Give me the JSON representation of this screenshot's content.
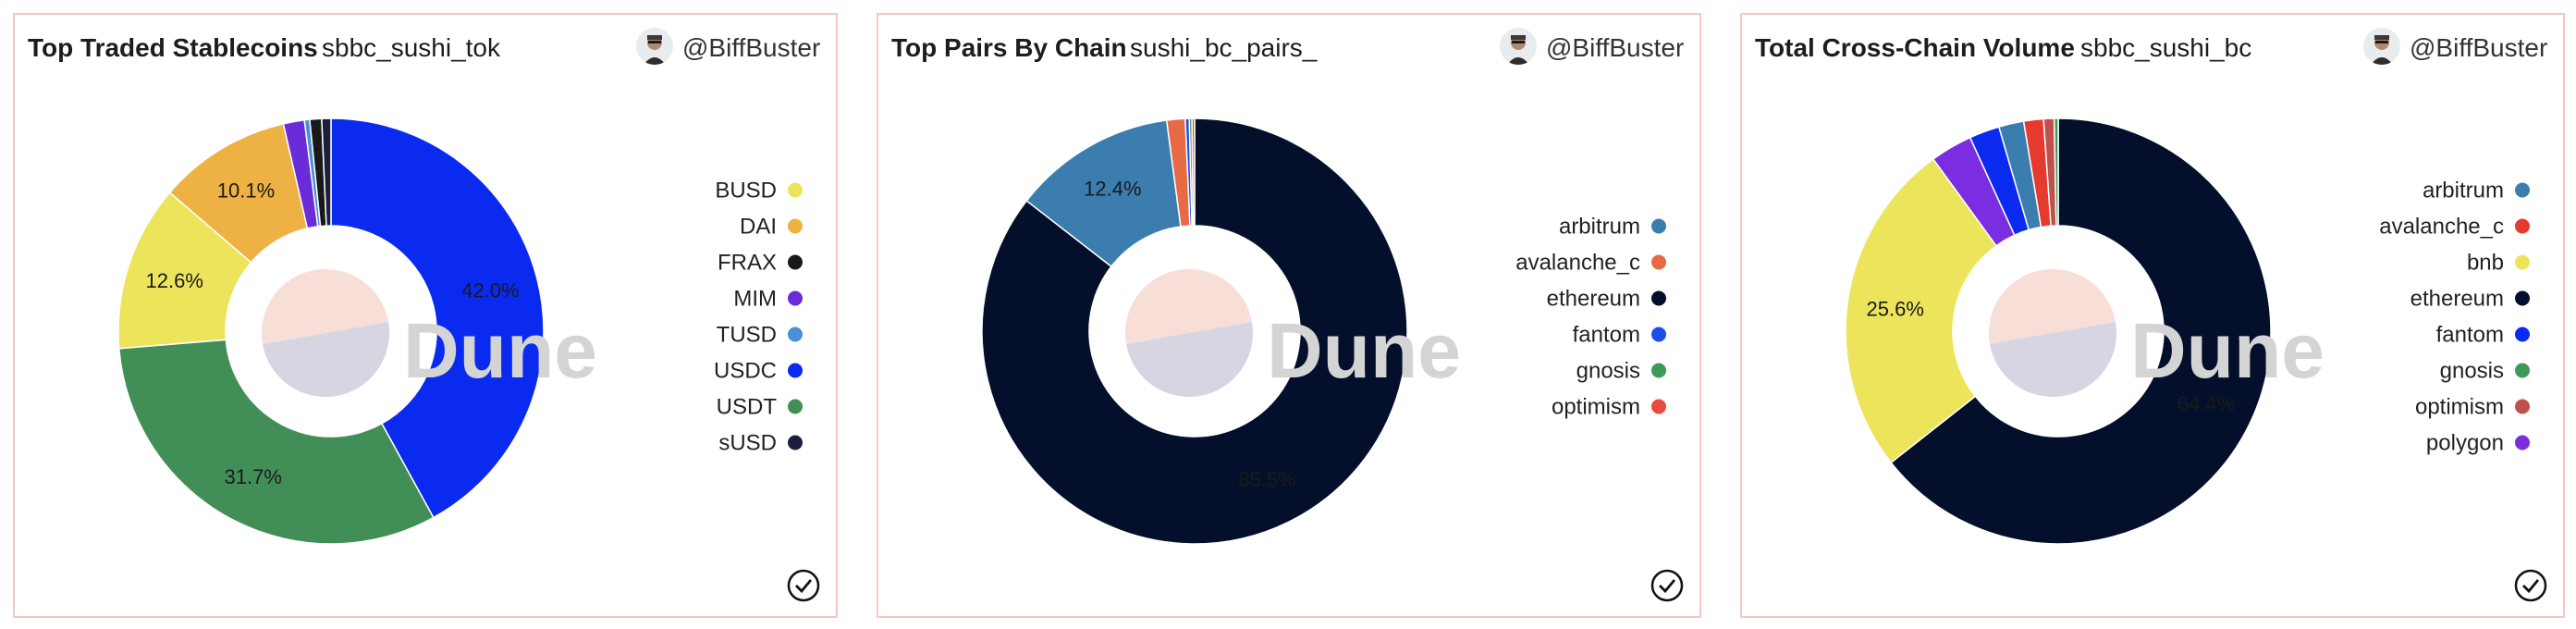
{
  "panels": [
    {
      "title": "Top Traded Stablecoins",
      "query": "sbbc_sushi_tok",
      "author": "@BiffBuster"
    },
    {
      "title": "Top Pairs By Chain",
      "query": "sushi_bc_pairs_",
      "author": "@BiffBuster"
    },
    {
      "title": "Total Cross-Chain Volume",
      "query": "sbbc_sushi_bc",
      "author": "@BiffBuster"
    }
  ],
  "watermark": "Dune",
  "chart_data": [
    {
      "type": "pie",
      "title": "Top Traded Stablecoins",
      "legend_position": "right",
      "slices": [
        {
          "label": "USDC",
          "value": 42.0,
          "color": "#0a2bef",
          "show_label": "42.0%"
        },
        {
          "label": "USDT",
          "value": 31.7,
          "color": "#418f57",
          "show_label": "31.7%"
        },
        {
          "label": "BUSD",
          "value": 12.6,
          "color": "#ece55b",
          "show_label": "12.6%"
        },
        {
          "label": "DAI",
          "value": 10.1,
          "color": "#eeb143",
          "show_label": "10.1%"
        },
        {
          "label": "MIM",
          "value": 1.6,
          "color": "#6a2bd8",
          "show_label": ""
        },
        {
          "label": "TUSD",
          "value": 0.4,
          "color": "#4a90d9",
          "show_label": ""
        },
        {
          "label": "FRAX",
          "value": 0.9,
          "color": "#191919",
          "show_label": ""
        },
        {
          "label": "sUSD",
          "value": 0.7,
          "color": "#1b1f3b",
          "show_label": ""
        }
      ],
      "legend": [
        {
          "label": "BUSD",
          "color": "#ece55b"
        },
        {
          "label": "DAI",
          "color": "#eeb143"
        },
        {
          "label": "FRAX",
          "color": "#191919"
        },
        {
          "label": "MIM",
          "color": "#6a2bd8"
        },
        {
          "label": "TUSD",
          "color": "#4a90d9"
        },
        {
          "label": "USDC",
          "color": "#0a2bef"
        },
        {
          "label": "USDT",
          "color": "#418f57"
        },
        {
          "label": "sUSD",
          "color": "#1b1f3b"
        }
      ]
    },
    {
      "type": "pie",
      "title": "Top Pairs By Chain",
      "legend_position": "right",
      "slices": [
        {
          "label": "ethereum",
          "value": 85.5,
          "color": "#04102b",
          "show_label": "85.5%"
        },
        {
          "label": "arbitrum",
          "value": 12.4,
          "color": "#3b7dae",
          "show_label": "12.4%"
        },
        {
          "label": "avalanche_c",
          "value": 1.4,
          "color": "#e66a44",
          "show_label": ""
        },
        {
          "label": "fantom",
          "value": 0.3,
          "color": "#1d4ee8",
          "show_label": ""
        },
        {
          "label": "gnosis",
          "value": 0.2,
          "color": "#3f9a5a",
          "show_label": ""
        },
        {
          "label": "optimism",
          "value": 0.2,
          "color": "#e84a3c",
          "show_label": ""
        }
      ],
      "legend": [
        {
          "label": "arbitrum",
          "color": "#3b7dae"
        },
        {
          "label": "avalanche_c",
          "color": "#e66a44"
        },
        {
          "label": "ethereum",
          "color": "#04102b"
        },
        {
          "label": "fantom",
          "color": "#1d4ee8"
        },
        {
          "label": "gnosis",
          "color": "#3f9a5a"
        },
        {
          "label": "optimism",
          "color": "#e84a3c"
        }
      ]
    },
    {
      "type": "pie",
      "title": "Total Cross-Chain Volume",
      "legend_position": "right",
      "slices": [
        {
          "label": "ethereum",
          "value": 64.4,
          "color": "#04102b",
          "show_label": "64.4%"
        },
        {
          "label": "bnb",
          "value": 25.6,
          "color": "#ece55b",
          "show_label": "25.6%"
        },
        {
          "label": "polygon",
          "value": 3.2,
          "color": "#7a2ee0",
          "show_label": ""
        },
        {
          "label": "fantom",
          "value": 2.3,
          "color": "#0a2bef",
          "show_label": ""
        },
        {
          "label": "arbitrum",
          "value": 1.9,
          "color": "#3b7dae",
          "show_label": ""
        },
        {
          "label": "avalanche_c",
          "value": 1.5,
          "color": "#e63a2e",
          "show_label": ""
        },
        {
          "label": "optimism",
          "value": 0.8,
          "color": "#c0504d",
          "show_label": ""
        },
        {
          "label": "gnosis",
          "value": 0.3,
          "color": "#3f9a5a",
          "show_label": ""
        }
      ],
      "legend": [
        {
          "label": "arbitrum",
          "color": "#3b7dae"
        },
        {
          "label": "avalanche_c",
          "color": "#e63a2e"
        },
        {
          "label": "bnb",
          "color": "#ece55b"
        },
        {
          "label": "ethereum",
          "color": "#04102b"
        },
        {
          "label": "fantom",
          "color": "#0a2bef"
        },
        {
          "label": "gnosis",
          "color": "#3f9a5a"
        },
        {
          "label": "optimism",
          "color": "#c0504d"
        },
        {
          "label": "polygon",
          "color": "#7a2ee0"
        }
      ]
    }
  ]
}
